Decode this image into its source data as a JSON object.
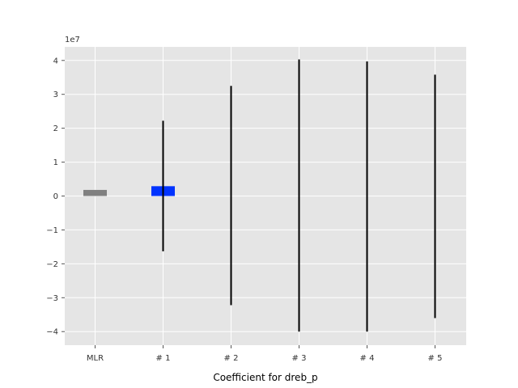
{
  "chart_data": {
    "type": "bar",
    "title": "",
    "xlabel": "Coefficient for dreb_p",
    "ylabel": "",
    "y_offset_label": "1e7",
    "y_scale_factor": 10000000,
    "ylim": [
      -4.4,
      4.4
    ],
    "yticks": [
      -4,
      -3,
      -2,
      -1,
      0,
      1,
      2,
      3,
      4
    ],
    "ytick_labels": [
      "−4",
      "−3",
      "−2",
      "−1",
      "0",
      "1",
      "2",
      "3",
      "4"
    ],
    "grid": true,
    "legend": "none",
    "background_color": "#e5e5e5",
    "grid_color": "#ffffff",
    "categories": [
      "MLR",
      "# 1",
      "# 2",
      "# 3",
      "# 4",
      "# 5"
    ],
    "values": [
      0.18,
      0.29,
      0,
      0,
      0,
      0
    ],
    "bar_colors": [
      "#808080",
      "#0033ff",
      "#0033ff",
      "#0033ff",
      "#0033ff",
      "#0033ff"
    ],
    "error_low": [
      null,
      -1.63,
      -3.22,
      -4.0,
      -4.0,
      -3.6
    ],
    "error_high": [
      null,
      2.22,
      3.25,
      4.03,
      3.97,
      3.58
    ],
    "error_color": "#000000"
  }
}
